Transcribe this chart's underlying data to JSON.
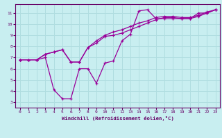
{
  "background_color": "#c8eef0",
  "grid_color": "#b0dde0",
  "line_color": "#990099",
  "marker_color": "#990099",
  "xlabel": "Windchill (Refroidissement éolien,°C)",
  "xlim": [
    -0.5,
    23.5
  ],
  "ylim": [
    2.5,
    11.8
  ],
  "xticks": [
    0,
    1,
    2,
    3,
    4,
    5,
    6,
    7,
    8,
    9,
    10,
    11,
    12,
    13,
    14,
    15,
    16,
    17,
    18,
    19,
    20,
    21,
    22,
    23
  ],
  "yticks": [
    3,
    4,
    5,
    6,
    7,
    8,
    9,
    10,
    11
  ],
  "series": [
    {
      "x": [
        0,
        1,
        2,
        3,
        4,
        5,
        6,
        7,
        8,
        9,
        10,
        11,
        12,
        13,
        14,
        15,
        16,
        17,
        18,
        19,
        20,
        21,
        22,
        23
      ],
      "y": [
        6.8,
        6.8,
        6.8,
        7.0,
        4.1,
        3.3,
        3.3,
        6.0,
        6.0,
        4.7,
        6.5,
        6.7,
        8.5,
        9.1,
        11.2,
        11.3,
        10.5,
        10.5,
        10.5,
        10.5,
        10.5,
        11.0,
        11.0,
        11.3
      ]
    },
    {
      "x": [
        0,
        1,
        2,
        3,
        4,
        5,
        6,
        7,
        8,
        9,
        10,
        11,
        12,
        13,
        14,
        15,
        16,
        17,
        18,
        19,
        20,
        21,
        22,
        23
      ],
      "y": [
        6.8,
        6.8,
        6.8,
        7.3,
        7.5,
        7.7,
        6.6,
        6.6,
        7.9,
        8.3,
        8.9,
        9.0,
        9.2,
        9.5,
        9.8,
        10.1,
        10.4,
        10.6,
        10.6,
        10.5,
        10.5,
        10.7,
        11.0,
        11.3
      ]
    },
    {
      "x": [
        0,
        1,
        2,
        3,
        4,
        5,
        6,
        7,
        8,
        9,
        10,
        11,
        12,
        13,
        14,
        15,
        16,
        17,
        18,
        19,
        20,
        21,
        22,
        23
      ],
      "y": [
        6.8,
        6.8,
        6.8,
        7.3,
        7.5,
        7.7,
        6.6,
        6.6,
        7.9,
        8.5,
        9.0,
        9.3,
        9.5,
        9.8,
        10.1,
        10.3,
        10.6,
        10.7,
        10.7,
        10.6,
        10.6,
        10.8,
        11.1,
        11.3
      ]
    }
  ]
}
